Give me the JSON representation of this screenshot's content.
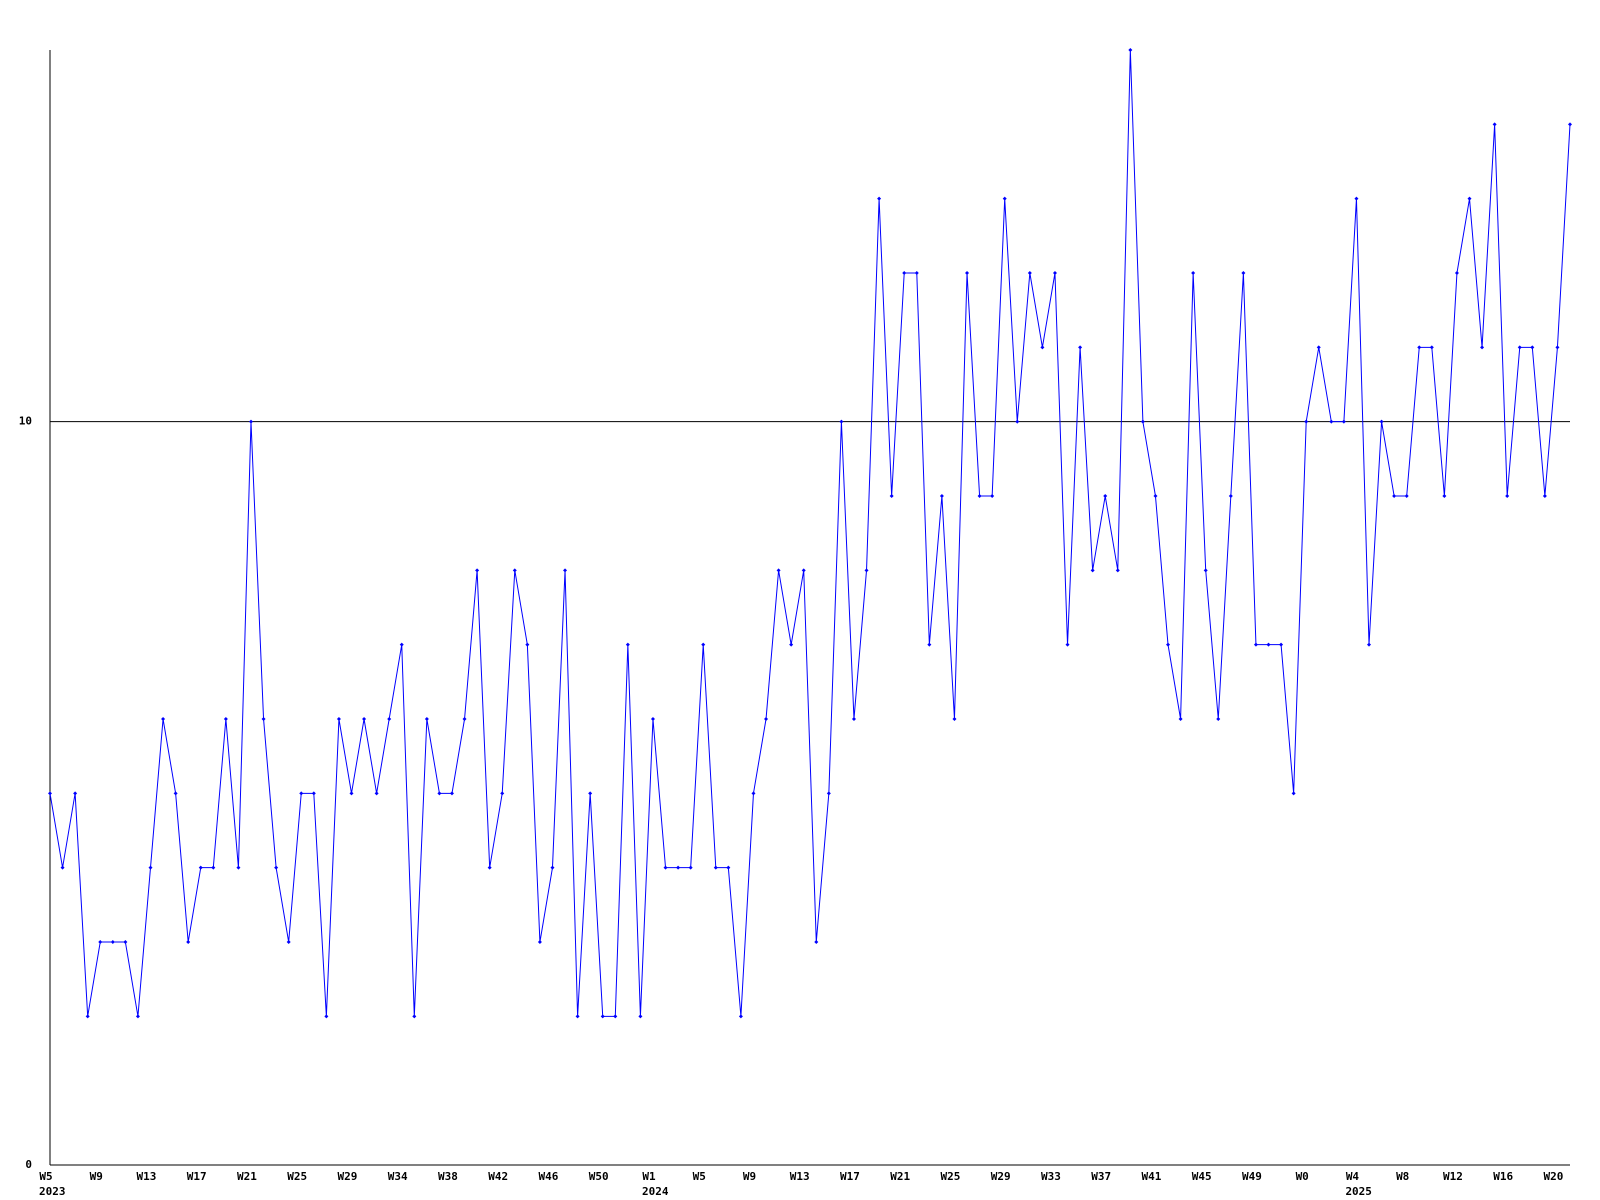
{
  "chart_data": {
    "type": "line",
    "categories": [
      "W5",
      null,
      null,
      null,
      "W9",
      null,
      null,
      null,
      "W13",
      null,
      null,
      null,
      "W17",
      null,
      null,
      null,
      "W21",
      null,
      null,
      null,
      "W25",
      null,
      null,
      null,
      "W29",
      null,
      null,
      null,
      "W34",
      null,
      null,
      null,
      "W38",
      null,
      null,
      null,
      "W42",
      null,
      null,
      null,
      "W46",
      null,
      null,
      null,
      "W50",
      null,
      null,
      null,
      "W1",
      null,
      null,
      null,
      "W5",
      null,
      null,
      null,
      "W9",
      null,
      null,
      null,
      "W13",
      null,
      null,
      null,
      "W17",
      null,
      null,
      null,
      "W21",
      null,
      null,
      null,
      "W25",
      null,
      null,
      null,
      "W29",
      null,
      null,
      null,
      "W33",
      null,
      null,
      null,
      "W37",
      null,
      null,
      null,
      "W41",
      null,
      null,
      null,
      "W45",
      null,
      null,
      null,
      "W49",
      null,
      null,
      null,
      "W0",
      null,
      null,
      null,
      "W4",
      null,
      null,
      null,
      "W8",
      null,
      null,
      null,
      "W12",
      null,
      null,
      null,
      "W16",
      null,
      null,
      null,
      "W20",
      null
    ],
    "category_years": [
      "2023",
      null,
      null,
      null,
      null,
      null,
      null,
      null,
      null,
      null,
      null,
      null,
      null,
      null,
      null,
      null,
      null,
      null,
      null,
      null,
      null,
      null,
      null,
      null,
      null,
      null,
      null,
      null,
      null,
      null,
      null,
      null,
      null,
      null,
      null,
      null,
      null,
      null,
      null,
      null,
      null,
      null,
      null,
      null,
      null,
      null,
      null,
      null,
      "2024",
      null,
      null,
      null,
      null,
      null,
      null,
      null,
      null,
      null,
      null,
      null,
      null,
      null,
      null,
      null,
      null,
      null,
      null,
      null,
      null,
      null,
      null,
      null,
      null,
      null,
      null,
      null,
      null,
      null,
      null,
      null,
      null,
      null,
      null,
      null,
      null,
      null,
      null,
      null,
      null,
      null,
      null,
      null,
      null,
      null,
      null,
      null,
      null,
      null,
      null,
      null,
      null,
      null,
      null,
      null,
      "2025",
      null,
      null,
      null,
      null,
      null,
      null,
      null,
      null,
      null,
      null,
      null,
      null,
      null,
      null,
      null,
      null,
      null,
      null,
      null,
      null,
      null
    ],
    "series": [
      {
        "color": "#0000ff",
        "values": [
          5,
          4,
          5,
          2,
          3,
          3,
          3,
          2,
          4,
          6,
          5,
          3,
          4,
          4,
          6,
          4,
          10,
          6,
          4,
          3,
          5,
          5,
          2,
          6,
          5,
          6,
          5,
          6,
          7,
          2,
          6,
          5,
          5,
          6,
          8,
          4,
          5,
          8,
          7,
          3,
          4,
          8,
          2,
          5,
          2,
          2,
          7,
          2,
          6,
          4,
          4,
          4,
          7,
          4,
          4,
          2,
          5,
          6,
          8,
          7,
          8,
          3,
          5,
          10,
          6,
          8,
          13,
          9,
          12,
          12,
          7,
          9,
          6,
          12,
          9,
          9,
          13,
          10,
          12,
          11,
          12,
          7,
          11,
          8,
          9,
          8,
          15,
          10,
          9,
          7,
          6,
          12,
          8,
          6,
          9,
          12,
          7,
          7,
          7,
          5,
          10,
          11,
          10,
          10,
          13,
          7,
          10,
          9,
          9,
          11,
          11,
          9,
          12,
          13,
          11,
          14,
          9,
          11,
          11,
          9,
          11,
          14
        ]
      }
    ],
    "ylim": [
      0,
      15
    ],
    "yticks": [
      0,
      10
    ],
    "grid": true
  }
}
